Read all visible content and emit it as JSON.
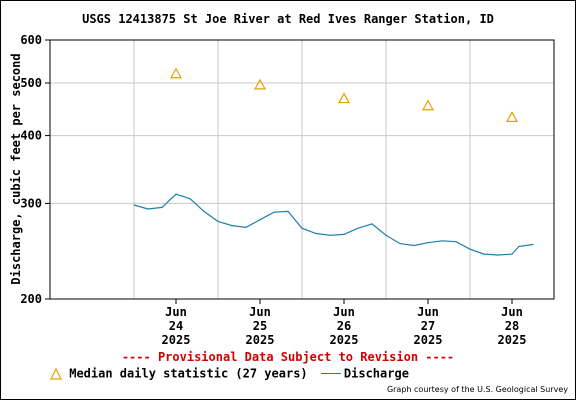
{
  "chart_data": {
    "type": "line",
    "title": "USGS 12413875 St Joe River at Red Ives Ranger Station, ID",
    "ylabel": "Discharge, cubic feet per second",
    "xlabel": "",
    "y_scale": "log",
    "ylim": [
      200,
      600
    ],
    "y_ticks": [
      "200",
      "300",
      "400",
      "500",
      "600"
    ],
    "x_range_days": [
      "2025-06-23",
      "2025-06-28"
    ],
    "x_ticks": [
      {
        "month": "Jun",
        "day": "24",
        "year": "2025",
        "date": "2025-06-24T12:00"
      },
      {
        "month": "Jun",
        "day": "25",
        "year": "2025",
        "date": "2025-06-25T12:00"
      },
      {
        "month": "Jun",
        "day": "26",
        "year": "2025",
        "date": "2025-06-26T12:00"
      },
      {
        "month": "Jun",
        "day": "27",
        "year": "2025",
        "date": "2025-06-27T12:00"
      },
      {
        "month": "Jun",
        "day": "28",
        "year": "2025",
        "date": "2025-06-28T12:00"
      }
    ],
    "grid": true,
    "legend_position": "bottom",
    "series": [
      {
        "name": "Median daily statistic (27 years)",
        "marker": "triangle",
        "color": "#e8a000",
        "points": [
          {
            "x": "2025-06-24T12:00",
            "y": 520
          },
          {
            "x": "2025-06-25T12:00",
            "y": 496
          },
          {
            "x": "2025-06-26T12:00",
            "y": 468
          },
          {
            "x": "2025-06-27T12:00",
            "y": 454
          },
          {
            "x": "2025-06-28T12:00",
            "y": 432
          }
        ]
      },
      {
        "name": "Discharge",
        "color": "#1f7fa8",
        "points": [
          {
            "x": "2025-06-24T00:00",
            "y": 298
          },
          {
            "x": "2025-06-24T04:00",
            "y": 293
          },
          {
            "x": "2025-06-24T08:00",
            "y": 295
          },
          {
            "x": "2025-06-24T12:00",
            "y": 312
          },
          {
            "x": "2025-06-24T16:00",
            "y": 306
          },
          {
            "x": "2025-06-24T20:00",
            "y": 290
          },
          {
            "x": "2025-06-25T00:00",
            "y": 278
          },
          {
            "x": "2025-06-25T04:00",
            "y": 273
          },
          {
            "x": "2025-06-25T08:00",
            "y": 271
          },
          {
            "x": "2025-06-25T12:00",
            "y": 280
          },
          {
            "x": "2025-06-25T16:00",
            "y": 289
          },
          {
            "x": "2025-06-25T20:00",
            "y": 290
          },
          {
            "x": "2025-06-26T00:00",
            "y": 270
          },
          {
            "x": "2025-06-26T04:00",
            "y": 264
          },
          {
            "x": "2025-06-26T08:00",
            "y": 262
          },
          {
            "x": "2025-06-26T12:00",
            "y": 263
          },
          {
            "x": "2025-06-26T16:00",
            "y": 270
          },
          {
            "x": "2025-06-26T20:00",
            "y": 275
          },
          {
            "x": "2025-06-27T00:00",
            "y": 262
          },
          {
            "x": "2025-06-27T04:00",
            "y": 253
          },
          {
            "x": "2025-06-27T08:00",
            "y": 251
          },
          {
            "x": "2025-06-27T12:00",
            "y": 254
          },
          {
            "x": "2025-06-27T16:00",
            "y": 256
          },
          {
            "x": "2025-06-27T20:00",
            "y": 255
          },
          {
            "x": "2025-06-28T00:00",
            "y": 247
          },
          {
            "x": "2025-06-28T04:00",
            "y": 242
          },
          {
            "x": "2025-06-28T08:00",
            "y": 241
          },
          {
            "x": "2025-06-28T12:00",
            "y": 242
          },
          {
            "x": "2025-06-28T14:00",
            "y": 250
          },
          {
            "x": "2025-06-28T18:00",
            "y": 252
          }
        ]
      }
    ],
    "annotation": "---- Provisional Data Subject to Revision ----",
    "credit": "Graph courtesy of the U.S. Geological Survey"
  }
}
